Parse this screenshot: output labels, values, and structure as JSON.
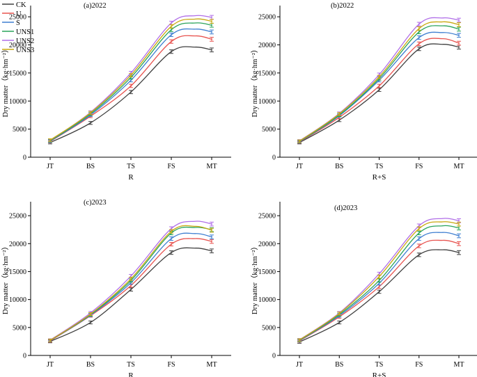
{
  "figure": {
    "series": [
      {
        "key": "CK",
        "name": "CK",
        "color": "#404040"
      },
      {
        "key": "U",
        "name": "U",
        "color": "#e8534f"
      },
      {
        "key": "S",
        "name": "S",
        "color": "#3f7fd1"
      },
      {
        "key": "UNS1",
        "name": "UNS1",
        "color": "#29a35a"
      },
      {
        "key": "UNS2",
        "name": "UNS2",
        "color": "#b06ee8"
      },
      {
        "key": "UNS3",
        "name": "UNS3",
        "color": "#c9a80f"
      }
    ],
    "ylabel": "Dry matter（kg·hm⁻²）"
  },
  "chart_data": [
    {
      "type": "line",
      "title": "(a)2022",
      "xlabel": "R",
      "ylabel": "Dry matter（kg·hm⁻²）",
      "categories": [
        "JT",
        "BS",
        "TS",
        "FS",
        "MT"
      ],
      "ylim": [
        0,
        27000
      ],
      "yticks": [
        0,
        5000,
        10000,
        15000,
        20000,
        25000
      ],
      "legend": "top-left",
      "series": [
        {
          "name": "CK",
          "values": [
            2600,
            6100,
            11600,
            18800,
            19100
          ],
          "peak": 19600
        },
        {
          "name": "U",
          "values": [
            2800,
            7300,
            12700,
            20600,
            21000
          ],
          "peak": 21600
        },
        {
          "name": "S",
          "values": [
            2850,
            7500,
            13700,
            21800,
            22300
          ],
          "peak": 22800
        },
        {
          "name": "UNS1",
          "values": [
            2900,
            7700,
            14200,
            22700,
            23500
          ],
          "peak": 23900
        },
        {
          "name": "UNS2",
          "values": [
            3000,
            8000,
            15000,
            23900,
            24900
          ],
          "peak": 25200
        },
        {
          "name": "UNS3",
          "values": [
            3050,
            7900,
            14600,
            23300,
            24200
          ],
          "peak": 24600
        }
      ]
    },
    {
      "type": "line",
      "title": "(b)2022",
      "xlabel": "R+S",
      "ylabel": "Dry matter（kg·hm⁻²）",
      "categories": [
        "JT",
        "BS",
        "TS",
        "FS",
        "MT"
      ],
      "ylim": [
        0,
        27000
      ],
      "yticks": [
        0,
        5000,
        10000,
        15000,
        20000,
        25000
      ],
      "series": [
        {
          "name": "CK",
          "values": [
            2600,
            6600,
            12000,
            19300,
            19600
          ],
          "peak": 20100
        },
        {
          "name": "U",
          "values": [
            2700,
            7100,
            12700,
            20200,
            20300
          ],
          "peak": 21100
        },
        {
          "name": "S",
          "values": [
            2750,
            7400,
            13700,
            21300,
            21700
          ],
          "peak": 22200
        },
        {
          "name": "UNS1",
          "values": [
            2800,
            7500,
            14000,
            22300,
            22800
          ],
          "peak": 23400
        },
        {
          "name": "UNS2",
          "values": [
            2900,
            7800,
            14700,
            23700,
            24400
          ],
          "peak": 24800
        },
        {
          "name": "UNS3",
          "values": [
            2850,
            7700,
            14300,
            22900,
            23600
          ],
          "peak": 24100
        }
      ]
    },
    {
      "type": "line",
      "title": "(c)2023",
      "xlabel": "R",
      "ylabel": "Dry matter（kg·hm⁻²）",
      "categories": [
        "JT",
        "BS",
        "TS",
        "FS",
        "MT"
      ],
      "ylim": [
        0,
        27500
      ],
      "yticks": [
        0,
        5000,
        10000,
        15000,
        20000,
        25000
      ],
      "series": [
        {
          "name": "CK",
          "values": [
            2500,
            5900,
            11800,
            18400,
            18700
          ],
          "peak": 19200
        },
        {
          "name": "U",
          "values": [
            2600,
            7100,
            12500,
            19900,
            20400
          ],
          "peak": 20900
        },
        {
          "name": "S",
          "values": [
            2650,
            7200,
            13000,
            20900,
            21200
          ],
          "peak": 21800
        },
        {
          "name": "UNS1",
          "values": [
            2700,
            7300,
            13400,
            21900,
            22500
          ],
          "peak": 22900
        },
        {
          "name": "UNS2",
          "values": [
            2750,
            7600,
            14200,
            22700,
            23500
          ],
          "peak": 24000
        },
        {
          "name": "UNS3",
          "values": [
            2700,
            7400,
            13700,
            22200,
            22400
          ],
          "peak": 23100
        }
      ]
    },
    {
      "type": "line",
      "title": "(d)2023",
      "xlabel": "R+S",
      "ylabel": "Dry matter（kg·hm⁻²）",
      "categories": [
        "JT",
        "BS",
        "TS",
        "FS",
        "MT"
      ],
      "ylim": [
        0,
        27500
      ],
      "yticks": [
        0,
        5000,
        10000,
        15000,
        20000,
        25000
      ],
      "series": [
        {
          "name": "CK",
          "values": [
            2400,
            5900,
            11400,
            18000,
            18400
          ],
          "peak": 18900
        },
        {
          "name": "U",
          "values": [
            2600,
            6900,
            12300,
            19600,
            20000
          ],
          "peak": 20600
        },
        {
          "name": "S",
          "values": [
            2650,
            7100,
            12900,
            20900,
            21400
          ],
          "peak": 22000
        },
        {
          "name": "UNS1",
          "values": [
            2700,
            7300,
            13400,
            21900,
            22800
          ],
          "peak": 23200
        },
        {
          "name": "UNS2",
          "values": [
            2800,
            7600,
            14600,
            23200,
            24100
          ],
          "peak": 24500
        },
        {
          "name": "UNS3",
          "values": [
            2750,
            7500,
            14100,
            22700,
            23500
          ],
          "peak": 23900
        }
      ]
    }
  ]
}
